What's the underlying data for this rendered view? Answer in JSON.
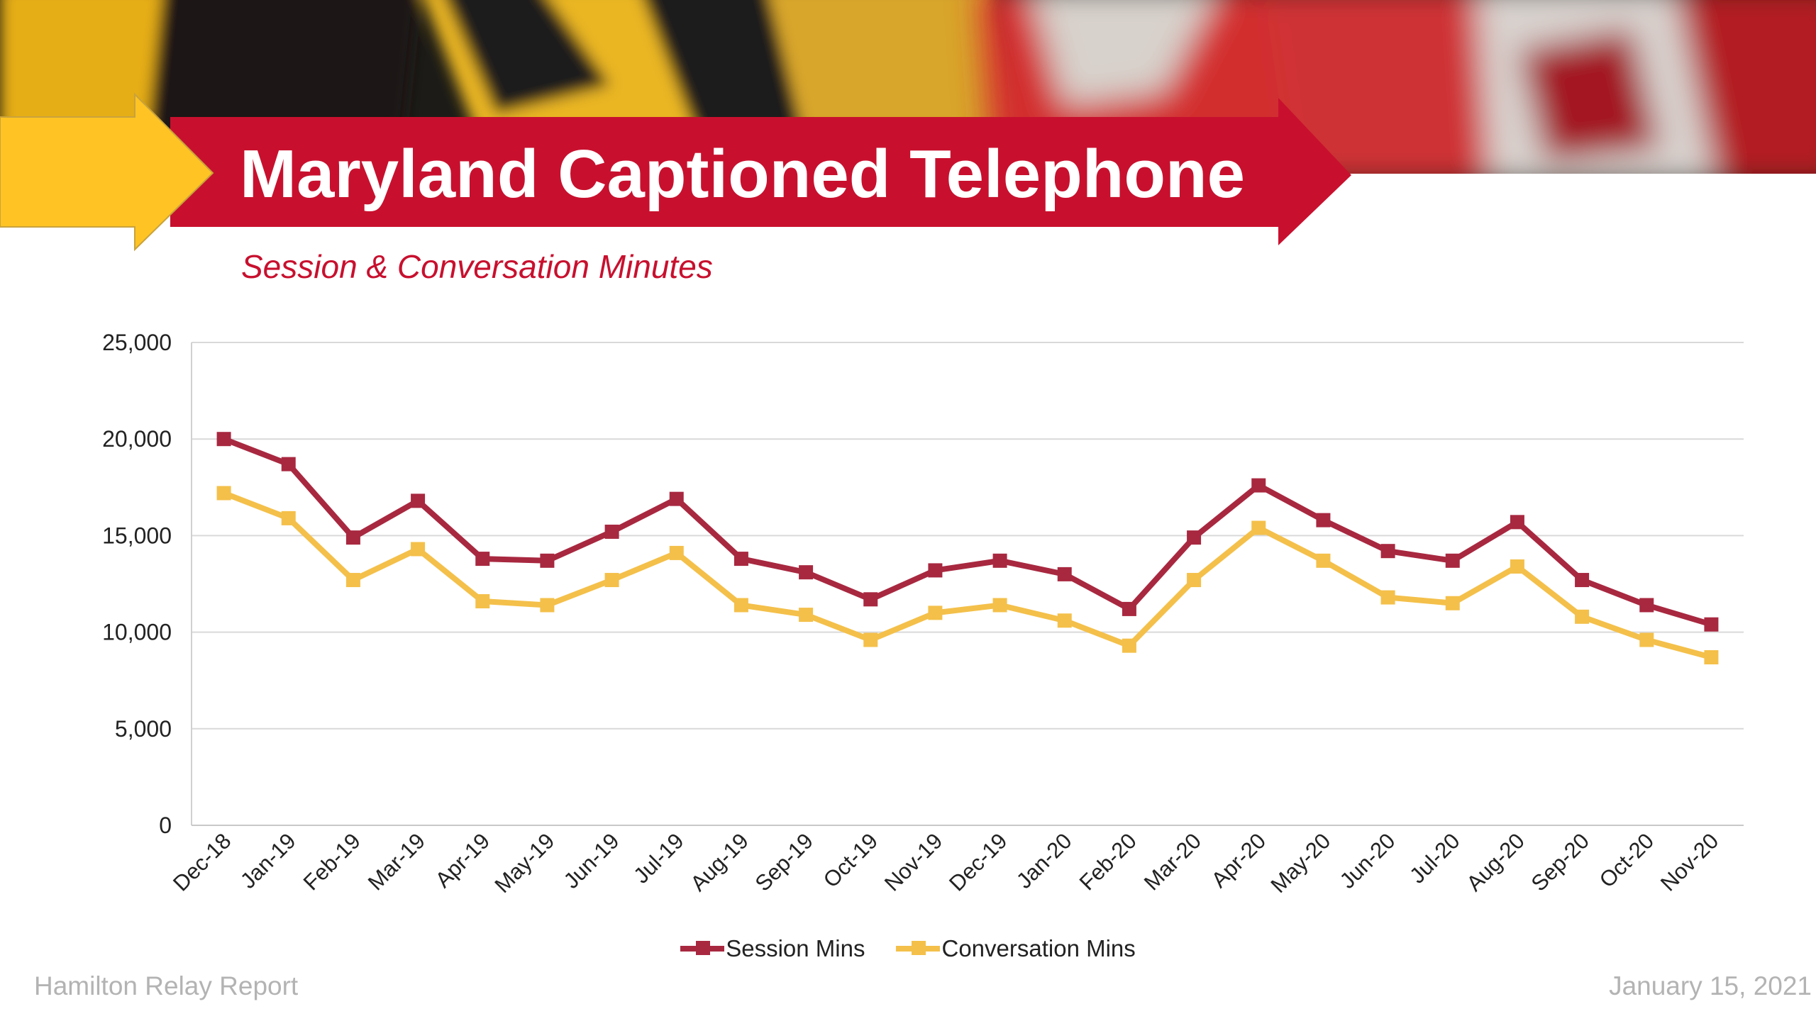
{
  "title": "Maryland Captioned Telephone",
  "subtitle": "Session & Conversation Minutes",
  "footer": {
    "left": "Hamilton Relay Report",
    "right": "January 15, 2021"
  },
  "colors": {
    "brand_red": "#c8102e",
    "brand_gold": "#ffc423",
    "session_line": "#a82840",
    "conversation_line": "#f4c04a"
  },
  "chart_data": {
    "type": "line",
    "title": "",
    "xlabel": "",
    "ylabel": "",
    "ylim": [
      0,
      25000
    ],
    "yticks": [
      "0",
      "5,000",
      "10,000",
      "15,000",
      "20,000",
      "25,000"
    ],
    "grid": true,
    "legend": "bottom",
    "categories": [
      "Dec-18",
      "Jan-19",
      "Feb-19",
      "Mar-19",
      "Apr-19",
      "May-19",
      "Jun-19",
      "Jul-19",
      "Aug-19",
      "Sep-19",
      "Oct-19",
      "Nov-19",
      "Dec-19",
      "Jan-20",
      "Feb-20",
      "Mar-20",
      "Apr-20",
      "May-20",
      "Jun-20",
      "Jul-20",
      "Aug-20",
      "Sep-20",
      "Oct-20",
      "Nov-20"
    ],
    "series": [
      {
        "name": "Session Mins",
        "color": "#a82840",
        "values": [
          20000,
          18700,
          14900,
          16800,
          13800,
          13700,
          15200,
          16900,
          13800,
          13100,
          11700,
          13200,
          13700,
          13000,
          11200,
          14900,
          17600,
          15800,
          14200,
          13700,
          15700,
          12700,
          11400,
          10400
        ]
      },
      {
        "name": "Conversation Mins",
        "color": "#f4c04a",
        "values": [
          17200,
          15900,
          12700,
          14300,
          11600,
          11400,
          12700,
          14100,
          11400,
          10900,
          9600,
          11000,
          11400,
          10600,
          9300,
          12700,
          15400,
          13700,
          11800,
          11500,
          13400,
          10800,
          9600,
          8700
        ]
      }
    ]
  }
}
